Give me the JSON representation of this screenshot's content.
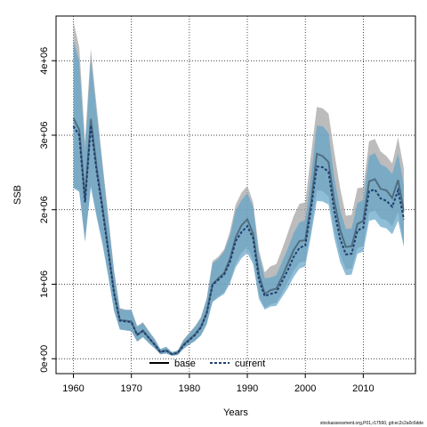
{
  "chart_data": {
    "type": "line",
    "xlabel": "Years",
    "ylabel": "SSB",
    "xlim": [
      1957,
      2019
    ],
    "ylim": [
      -200000,
      4600000
    ],
    "x_ticks": [
      1960,
      1970,
      1980,
      1990,
      2000,
      2010
    ],
    "y_ticks": [
      0,
      1000000,
      2000000,
      3000000,
      4000000
    ],
    "y_tick_labels": [
      "0e+00",
      "1e+06",
      "2e+06",
      "3e+06",
      "4e+06"
    ],
    "grid": true,
    "legend_position": "bottom-center",
    "caption": "stockassessment.org,P01,r17560, git:ec2c2a0c6dde",
    "x": [
      1960,
      1961,
      1962,
      1963,
      1964,
      1965,
      1966,
      1967,
      1968,
      1969,
      1970,
      1971,
      1972,
      1973,
      1974,
      1975,
      1976,
      1977,
      1978,
      1979,
      1980,
      1981,
      1982,
      1983,
      1984,
      1985,
      1986,
      1987,
      1988,
      1989,
      1990,
      1991,
      1992,
      1993,
      1994,
      1995,
      1996,
      1997,
      1998,
      1999,
      2000,
      2001,
      2002,
      2003,
      2004,
      2005,
      2006,
      2007,
      2008,
      2009,
      2010,
      2011,
      2012,
      2013,
      2014,
      2015,
      2016,
      2017
    ],
    "series": [
      {
        "name": "base",
        "color": "#000000",
        "band_color": "#a6a6a6",
        "values": [
          3230000,
          3070000,
          2150000,
          3220000,
          2570000,
          2050000,
          1480000,
          890000,
          520000,
          510000,
          500000,
          320000,
          380000,
          280000,
          190000,
          90000,
          110000,
          60000,
          80000,
          190000,
          260000,
          330000,
          430000,
          620000,
          1000000,
          1080000,
          1150000,
          1340000,
          1630000,
          1790000,
          1870000,
          1680000,
          1130000,
          870000,
          920000,
          940000,
          1100000,
          1280000,
          1460000,
          1580000,
          1590000,
          2100000,
          2750000,
          2720000,
          2640000,
          2110000,
          1730000,
          1500000,
          1510000,
          1810000,
          1850000,
          2380000,
          2410000,
          2280000,
          2260000,
          2160000,
          2400000,
          1980000
        ],
        "lower": [
          2300000,
          2260000,
          1580000,
          2330000,
          1930000,
          1580000,
          1130000,
          650000,
          400000,
          380000,
          370000,
          230000,
          290000,
          210000,
          140000,
          60000,
          70000,
          40000,
          50000,
          140000,
          190000,
          240000,
          320000,
          470000,
          770000,
          840000,
          890000,
          1040000,
          1280000,
          1420000,
          1500000,
          1320000,
          850000,
          680000,
          730000,
          750000,
          880000,
          1030000,
          1180000,
          1290000,
          1310000,
          1730000,
          2260000,
          2250000,
          2180000,
          1730000,
          1400000,
          1200000,
          1210000,
          1480000,
          1520000,
          1960000,
          1990000,
          1880000,
          1860000,
          1780000,
          1970000,
          1520000
        ],
        "upper": [
          4530000,
          4180000,
          2920000,
          4160000,
          3390000,
          2650000,
          1930000,
          1190000,
          680000,
          660000,
          660000,
          440000,
          490000,
          370000,
          270000,
          130000,
          160000,
          90000,
          110000,
          260000,
          350000,
          440000,
          560000,
          820000,
          1310000,
          1370000,
          1470000,
          1710000,
          2070000,
          2230000,
          2320000,
          2100000,
          1460000,
          1160000,
          1240000,
          1270000,
          1470000,
          1690000,
          1920000,
          2080000,
          2100000,
          2750000,
          3380000,
          3360000,
          3290000,
          2770000,
          2290000,
          1920000,
          1930000,
          2290000,
          2300000,
          2920000,
          2950000,
          2780000,
          2720000,
          2620000,
          2970000,
          2550000
        ]
      },
      {
        "name": "current",
        "color": "#1f3f6e",
        "band_color": "#5fa3c9",
        "values": [
          3120000,
          3000000,
          2100000,
          3130000,
          2520000,
          2010000,
          1450000,
          880000,
          510000,
          500000,
          490000,
          320000,
          370000,
          280000,
          190000,
          90000,
          110000,
          60000,
          80000,
          180000,
          250000,
          320000,
          420000,
          610000,
          990000,
          1060000,
          1130000,
          1300000,
          1580000,
          1700000,
          1780000,
          1620000,
          1060000,
          840000,
          870000,
          890000,
          1040000,
          1190000,
          1370000,
          1490000,
          1520000,
          2020000,
          2580000,
          2570000,
          2510000,
          1980000,
          1610000,
          1400000,
          1410000,
          1720000,
          1760000,
          2250000,
          2270000,
          2150000,
          2120000,
          2040000,
          2260000,
          1870000
        ],
        "lower": [
          2290000,
          2240000,
          1570000,
          2300000,
          1900000,
          1540000,
          1110000,
          640000,
          390000,
          380000,
          370000,
          230000,
          290000,
          210000,
          140000,
          60000,
          70000,
          40000,
          50000,
          130000,
          190000,
          240000,
          310000,
          460000,
          760000,
          820000,
          870000,
          1010000,
          1230000,
          1350000,
          1420000,
          1270000,
          800000,
          660000,
          700000,
          710000,
          830000,
          950000,
          1100000,
          1210000,
          1240000,
          1660000,
          2120000,
          2110000,
          2070000,
          1620000,
          1300000,
          1120000,
          1130000,
          1410000,
          1440000,
          1850000,
          1870000,
          1770000,
          1750000,
          1670000,
          1850000,
          1500000
        ],
        "upper": [
          4280000,
          3990000,
          2800000,
          4040000,
          3300000,
          2590000,
          1880000,
          1170000,
          670000,
          650000,
          650000,
          430000,
          480000,
          370000,
          260000,
          130000,
          160000,
          90000,
          110000,
          250000,
          340000,
          430000,
          550000,
          800000,
          1280000,
          1340000,
          1440000,
          1650000,
          1990000,
          2130000,
          2220000,
          2040000,
          1400000,
          1080000,
          1090000,
          1120000,
          1300000,
          1480000,
          1690000,
          1830000,
          1860000,
          2460000,
          3130000,
          3120000,
          3030000,
          2430000,
          2000000,
          1740000,
          1750000,
          2090000,
          2130000,
          2720000,
          2760000,
          2610000,
          2570000,
          2480000,
          2750000,
          2320000
        ]
      }
    ]
  }
}
